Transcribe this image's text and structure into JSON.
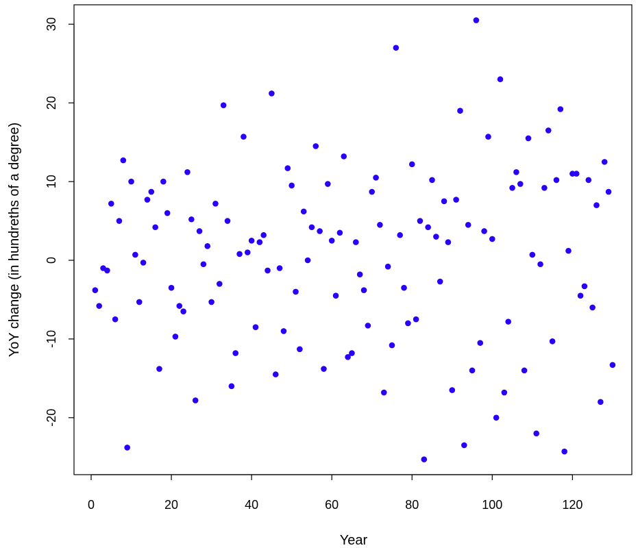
{
  "chart_data": {
    "type": "scatter",
    "title": "",
    "xlabel": "Year",
    "ylabel": "YoY change (in hundreths of a degree)",
    "xlim": [
      -3,
      134
    ],
    "ylim": [
      -27,
      32
    ],
    "xticks": [
      0,
      20,
      40,
      60,
      80,
      100,
      120
    ],
    "yticks": [
      -20,
      -10,
      0,
      10,
      20,
      30
    ],
    "grid": false,
    "point_color": "#2b00f7",
    "points": [
      [
        1,
        -3.8
      ],
      [
        2,
        -5.8
      ],
      [
        3,
        -1.0
      ],
      [
        4,
        -1.3
      ],
      [
        5,
        7.2
      ],
      [
        6,
        -7.5
      ],
      [
        7,
        5.0
      ],
      [
        8,
        12.7
      ],
      [
        9,
        -23.8
      ],
      [
        10,
        10.0
      ],
      [
        11,
        0.7
      ],
      [
        12,
        -5.3
      ],
      [
        13,
        -0.3
      ],
      [
        14,
        7.7
      ],
      [
        15,
        8.7
      ],
      [
        16,
        4.2
      ],
      [
        17,
        -13.8
      ],
      [
        18,
        10.0
      ],
      [
        19,
        6.0
      ],
      [
        20,
        -3.5
      ],
      [
        21,
        -9.7
      ],
      [
        22,
        -5.8
      ],
      [
        23,
        -6.5
      ],
      [
        24,
        11.2
      ],
      [
        25,
        5.2
      ],
      [
        26,
        -17.8
      ],
      [
        27,
        3.7
      ],
      [
        28,
        -0.5
      ],
      [
        29,
        1.8
      ],
      [
        30,
        -5.3
      ],
      [
        31,
        7.2
      ],
      [
        32,
        -3.0
      ],
      [
        33,
        19.7
      ],
      [
        34,
        5.0
      ],
      [
        35,
        -16.0
      ],
      [
        36,
        -11.8
      ],
      [
        37,
        0.8
      ],
      [
        38,
        15.7
      ],
      [
        39,
        1.0
      ],
      [
        40,
        2.5
      ],
      [
        41,
        -8.5
      ],
      [
        42,
        2.3
      ],
      [
        43,
        3.2
      ],
      [
        44,
        -1.3
      ],
      [
        45,
        21.2
      ],
      [
        46,
        -14.5
      ],
      [
        47,
        -1.0
      ],
      [
        48,
        -9.0
      ],
      [
        49,
        11.7
      ],
      [
        50,
        9.5
      ],
      [
        51,
        -4.0
      ],
      [
        52,
        -11.3
      ],
      [
        53,
        6.2
      ],
      [
        54,
        0.0
      ],
      [
        55,
        4.2
      ],
      [
        56,
        14.5
      ],
      [
        57,
        3.7
      ],
      [
        58,
        -13.8
      ],
      [
        59,
        9.7
      ],
      [
        60,
        2.5
      ],
      [
        61,
        -4.5
      ],
      [
        62,
        3.5
      ],
      [
        63,
        13.2
      ],
      [
        64,
        -12.3
      ],
      [
        65,
        -11.8
      ],
      [
        66,
        2.3
      ],
      [
        67,
        -1.8
      ],
      [
        68,
        -3.8
      ],
      [
        69,
        -8.3
      ],
      [
        70,
        8.7
      ],
      [
        71,
        10.5
      ],
      [
        72,
        4.5
      ],
      [
        73,
        -16.8
      ],
      [
        74,
        -0.8
      ],
      [
        75,
        -10.8
      ],
      [
        76,
        27.0
      ],
      [
        77,
        3.2
      ],
      [
        78,
        -3.5
      ],
      [
        79,
        -8.0
      ],
      [
        80,
        12.2
      ],
      [
        81,
        -7.5
      ],
      [
        82,
        5.0
      ],
      [
        83,
        -25.3
      ],
      [
        84,
        4.2
      ],
      [
        85,
        10.2
      ],
      [
        86,
        3.0
      ],
      [
        87,
        -2.7
      ],
      [
        88,
        7.5
      ],
      [
        89,
        2.3
      ],
      [
        90,
        -16.5
      ],
      [
        91,
        7.7
      ],
      [
        92,
        19.0
      ],
      [
        93,
        -23.5
      ],
      [
        94,
        4.5
      ],
      [
        95,
        -14.0
      ],
      [
        96,
        30.5
      ],
      [
        97,
        -10.5
      ],
      [
        98,
        3.7
      ],
      [
        99,
        15.7
      ],
      [
        100,
        2.7
      ],
      [
        101,
        -20.0
      ],
      [
        102,
        23.0
      ],
      [
        103,
        -16.8
      ],
      [
        104,
        -7.8
      ],
      [
        105,
        9.2
      ],
      [
        106,
        11.2
      ],
      [
        107,
        9.7
      ],
      [
        108,
        -14.0
      ],
      [
        109,
        15.5
      ],
      [
        110,
        0.7
      ],
      [
        111,
        -22.0
      ],
      [
        112,
        -0.5
      ],
      [
        113,
        9.2
      ],
      [
        114,
        16.5
      ],
      [
        115,
        -10.3
      ],
      [
        116,
        10.2
      ],
      [
        117,
        19.2
      ],
      [
        118,
        -24.3
      ],
      [
        119,
        1.2
      ],
      [
        120,
        11.0
      ],
      [
        121,
        11.0
      ],
      [
        122,
        -4.5
      ],
      [
        123,
        -3.3
      ],
      [
        124,
        10.2
      ],
      [
        125,
        -6.0
      ],
      [
        126,
        7.0
      ],
      [
        127,
        -18.0
      ],
      [
        128,
        12.5
      ],
      [
        129,
        8.7
      ],
      [
        130,
        -13.3
      ]
    ]
  }
}
